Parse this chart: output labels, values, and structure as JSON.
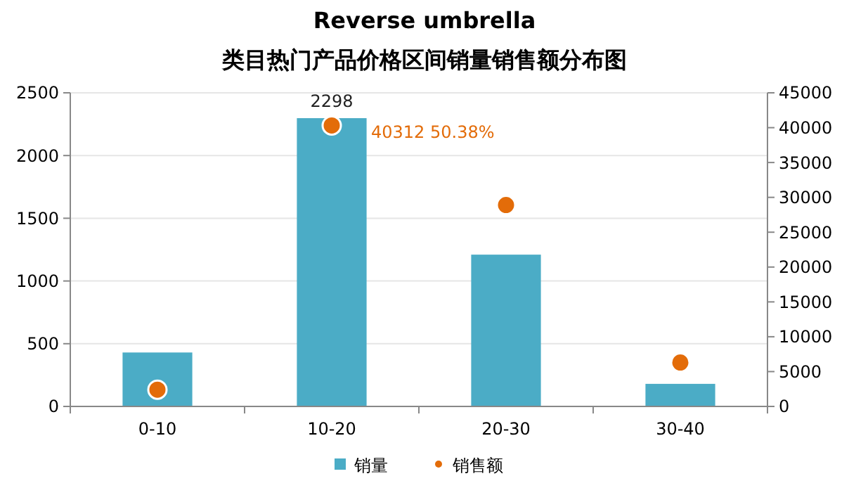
{
  "chart_data": {
    "type": "bar",
    "title": "Reverse umbrella",
    "subtitle": "类目热门产品价格区间销量销售额分布图",
    "categories": [
      "0-10",
      "10-20",
      "20-30",
      "30-40"
    ],
    "series": [
      {
        "name": "销量",
        "color": "#4bacc6",
        "values": [
          430,
          2298,
          1210,
          180
        ],
        "value_labels": [
          null,
          "2298",
          null,
          null
        ]
      },
      {
        "name": "销售额",
        "type": "scatter",
        "axis": "y2",
        "color": "#e36c09",
        "values": [
          2400,
          40312,
          28900,
          6300
        ],
        "value_labels": [
          null,
          "40312 50.38%",
          null,
          null
        ]
      }
    ],
    "ylim": [
      0,
      2500
    ],
    "yticks": [
      0,
      500,
      1000,
      1500,
      2000,
      2500
    ],
    "y2lim": [
      0,
      45000
    ],
    "y2ticks": [
      0,
      5000,
      10000,
      15000,
      20000,
      25000,
      30000,
      35000,
      40000,
      45000
    ],
    "grid": "y",
    "legend": "bottom",
    "marker": "circle"
  }
}
